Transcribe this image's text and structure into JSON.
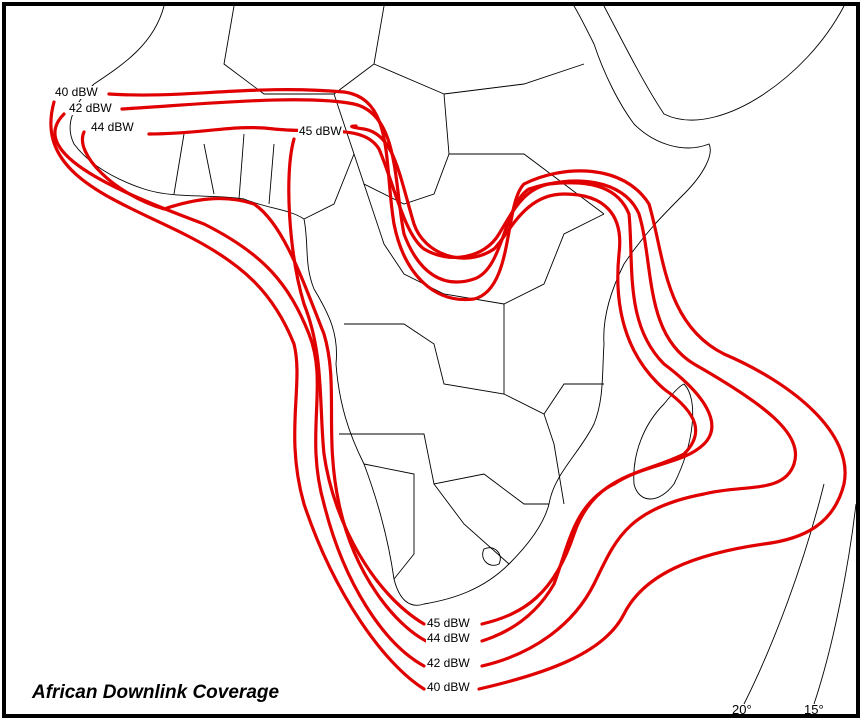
{
  "map": {
    "title": "African Downlink Coverage",
    "contour_color": "#e00000",
    "contours": [
      {
        "level": "40 dBW"
      },
      {
        "level": "42 dBW"
      },
      {
        "level": "44 dBW"
      },
      {
        "level": "45 dBW"
      }
    ],
    "longitude_ticks": [
      "20°",
      "15°"
    ]
  }
}
